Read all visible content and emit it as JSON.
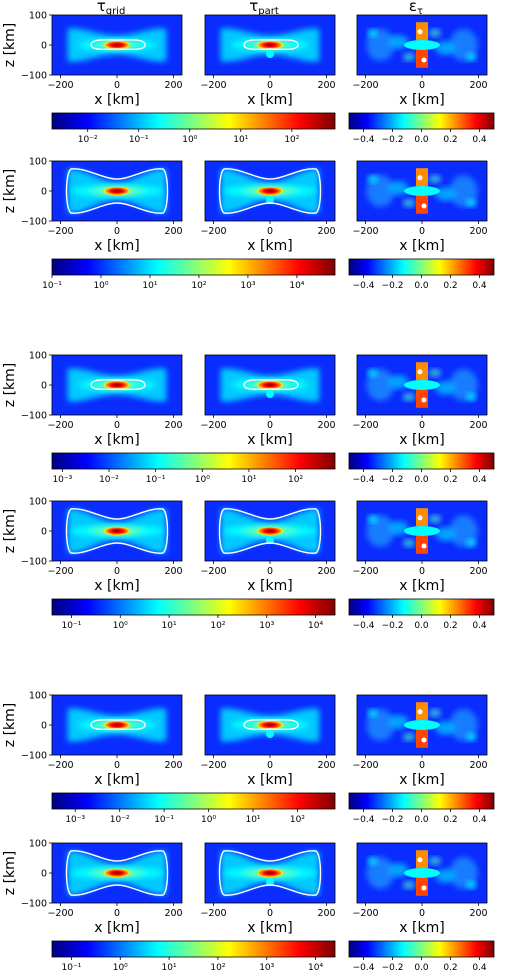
{
  "figure": {
    "column_titles": [
      {
        "sym": "τ",
        "sub": "grid"
      },
      {
        "sym": "τ",
        "sub": "part"
      },
      {
        "sym": "ε",
        "sub": "τ"
      }
    ]
  },
  "colors": {
    "jet": [
      "#00007f",
      "#0000ff",
      "#007fff",
      "#00ffff",
      "#7fff7f",
      "#ffff00",
      "#ff7f00",
      "#ff0000",
      "#7f0000"
    ],
    "contour": "#ffffff",
    "frame": "#000000"
  },
  "chart_data": [
    {
      "type": "heatmap",
      "panels": [
        "τ_grid",
        "τ_part",
        "ε_τ"
      ],
      "xlabel": "x [km]",
      "ylabel": "z [km]",
      "xlim": [
        -230,
        230
      ],
      "ylim": [
        -100,
        100
      ],
      "xticks": [
        "−200",
        "0",
        "200"
      ],
      "yticks": [
        "100",
        "0",
        "−100"
      ],
      "colorbar_tau": {
        "scale": "log",
        "range": [
          0.002,
          700
        ],
        "ticks": [
          "10⁻²",
          "10⁻¹",
          "10⁰",
          "10¹",
          "10²"
        ]
      },
      "colorbar_eps": {
        "scale": "linear",
        "range": [
          -0.5,
          0.5
        ],
        "ticks": [
          "−0.4",
          "−0.2",
          "0.0",
          "0.2",
          "0.4"
        ]
      }
    },
    {
      "type": "heatmap",
      "panels": [
        "τ_grid",
        "τ_part",
        "ε_τ"
      ],
      "xlabel": "x [km]",
      "ylabel": "z [km]",
      "xlim": [
        -230,
        230
      ],
      "ylim": [
        -100,
        100
      ],
      "xticks": [
        "−200",
        "0",
        "200"
      ],
      "yticks": [
        "100",
        "0",
        "−100"
      ],
      "colorbar_tau": {
        "scale": "log",
        "range": [
          0.1,
          60000
        ],
        "ticks": [
          "10⁻¹",
          "10⁰",
          "10¹",
          "10²",
          "10³",
          "10⁴"
        ]
      },
      "colorbar_eps": {
        "scale": "linear",
        "range": [
          -0.5,
          0.5
        ],
        "ticks": [
          "−0.4",
          "−0.2",
          "0.0",
          "0.2",
          "0.4"
        ]
      }
    },
    {
      "type": "heatmap",
      "panels": [
        "τ_grid",
        "τ_part",
        "ε_τ"
      ],
      "xlabel": "x [km]",
      "ylabel": "z [km]",
      "xlim": [
        -230,
        230
      ],
      "ylim": [
        -100,
        100
      ],
      "xticks": [
        "−200",
        "0",
        "200"
      ],
      "yticks": [
        "100",
        "0",
        "−100"
      ],
      "colorbar_tau": {
        "scale": "log",
        "range": [
          0.0006,
          700
        ],
        "ticks": [
          "10⁻³",
          "10⁻²",
          "10⁻¹",
          "10⁰",
          "10¹",
          "10²"
        ]
      },
      "colorbar_eps": {
        "scale": "linear",
        "range": [
          -0.5,
          0.5
        ],
        "ticks": [
          "−0.4",
          "−0.2",
          "0.0",
          "0.2",
          "0.4"
        ]
      }
    },
    {
      "type": "heatmap",
      "panels": [
        "τ_grid",
        "τ_part",
        "ε_τ"
      ],
      "xlabel": "x [km]",
      "ylabel": "z [km]",
      "xlim": [
        -230,
        230
      ],
      "ylim": [
        -100,
        100
      ],
      "xticks": [
        "−200",
        "0",
        "200"
      ],
      "yticks": [
        "100",
        "0",
        "−100"
      ],
      "colorbar_tau": {
        "scale": "log",
        "range": [
          0.04,
          25000
        ],
        "ticks": [
          "10⁻¹",
          "10⁰",
          "10¹",
          "10²",
          "10³",
          "10⁴"
        ]
      },
      "colorbar_eps": {
        "scale": "linear",
        "range": [
          -0.5,
          0.5
        ],
        "ticks": [
          "−0.4",
          "−0.2",
          "0.0",
          "0.2",
          "0.4"
        ]
      }
    },
    {
      "type": "heatmap",
      "panels": [
        "τ_grid",
        "τ_part",
        "ε_τ"
      ],
      "xlabel": "x [km]",
      "ylabel": "z [km]",
      "xlim": [
        -230,
        230
      ],
      "ylim": [
        -100,
        100
      ],
      "xticks": [
        "−200",
        "0",
        "200"
      ],
      "yticks": [
        "100",
        "0",
        "−100"
      ],
      "colorbar_tau": {
        "scale": "log",
        "range": [
          0.0003,
          700
        ],
        "ticks": [
          "10⁻³",
          "10⁻²",
          "10⁻¹",
          "10⁰",
          "10¹",
          "10²"
        ]
      },
      "colorbar_eps": {
        "scale": "linear",
        "range": [
          -0.5,
          0.5
        ],
        "ticks": [
          "−0.4",
          "−0.2",
          "0.0",
          "0.2",
          "0.4"
        ]
      }
    },
    {
      "type": "heatmap",
      "panels": [
        "τ_grid",
        "τ_part",
        "ε_τ"
      ],
      "xlabel": "x [km]",
      "ylabel": "z [km]",
      "xlim": [
        -230,
        230
      ],
      "ylim": [
        -100,
        100
      ],
      "xticks": [
        "−200",
        "0",
        "200"
      ],
      "yticks": [
        "100",
        "0",
        "−100"
      ],
      "colorbar_tau": {
        "scale": "log",
        "range": [
          0.04,
          25000
        ],
        "ticks": [
          "10⁻¹",
          "10⁰",
          "10¹",
          "10²",
          "10³",
          "10⁴"
        ]
      },
      "colorbar_eps": {
        "scale": "linear",
        "range": [
          -0.5,
          0.5
        ],
        "ticks": [
          "−0.4",
          "−0.2",
          "0.0",
          "0.2",
          "0.4"
        ]
      }
    }
  ]
}
